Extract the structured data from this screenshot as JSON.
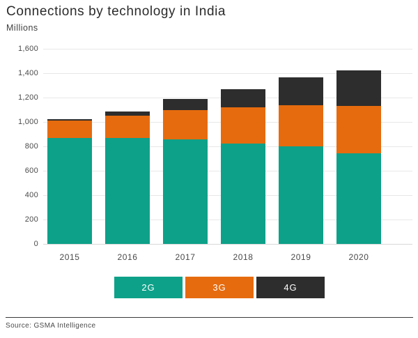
{
  "header": {
    "title": "Connections by technology in India",
    "subtitle": "Millions"
  },
  "chart_data": {
    "type": "bar",
    "stacked": true,
    "title": "Connections by technology in India",
    "ylabel": "Millions",
    "xlabel": "",
    "categories": [
      "2015",
      "2016",
      "2017",
      "2018",
      "2019",
      "2020"
    ],
    "series": [
      {
        "name": "2G",
        "color": "#0DA189",
        "values": [
          870,
          870,
          855,
          825,
          800,
          745
        ]
      },
      {
        "name": "3G",
        "color": "#E66B0E",
        "values": [
          140,
          180,
          240,
          295,
          335,
          385
        ]
      },
      {
        "name": "4G",
        "color": "#2D2D2D",
        "values": [
          15,
          35,
          95,
          150,
          230,
          295
        ]
      }
    ],
    "totals": [
      1025,
      1085,
      1190,
      1270,
      1365,
      1425
    ],
    "ylim": [
      0,
      1600
    ],
    "yticks": [
      0,
      200,
      400,
      600,
      800,
      1000,
      1200,
      1400,
      1600
    ],
    "ytick_labels": [
      "0",
      "200",
      "400",
      "600",
      "800",
      "1,000",
      "1,200",
      "1,400",
      "1,600"
    ],
    "grid": true,
    "legend_position": "bottom"
  },
  "footer": {
    "source": "Source: GSMA Intelligence"
  },
  "colors": {
    "background": "#ffffff",
    "grid": "#e7e7e7",
    "axis_text": "#4a4a4a",
    "divider": "#3a3a3a"
  }
}
